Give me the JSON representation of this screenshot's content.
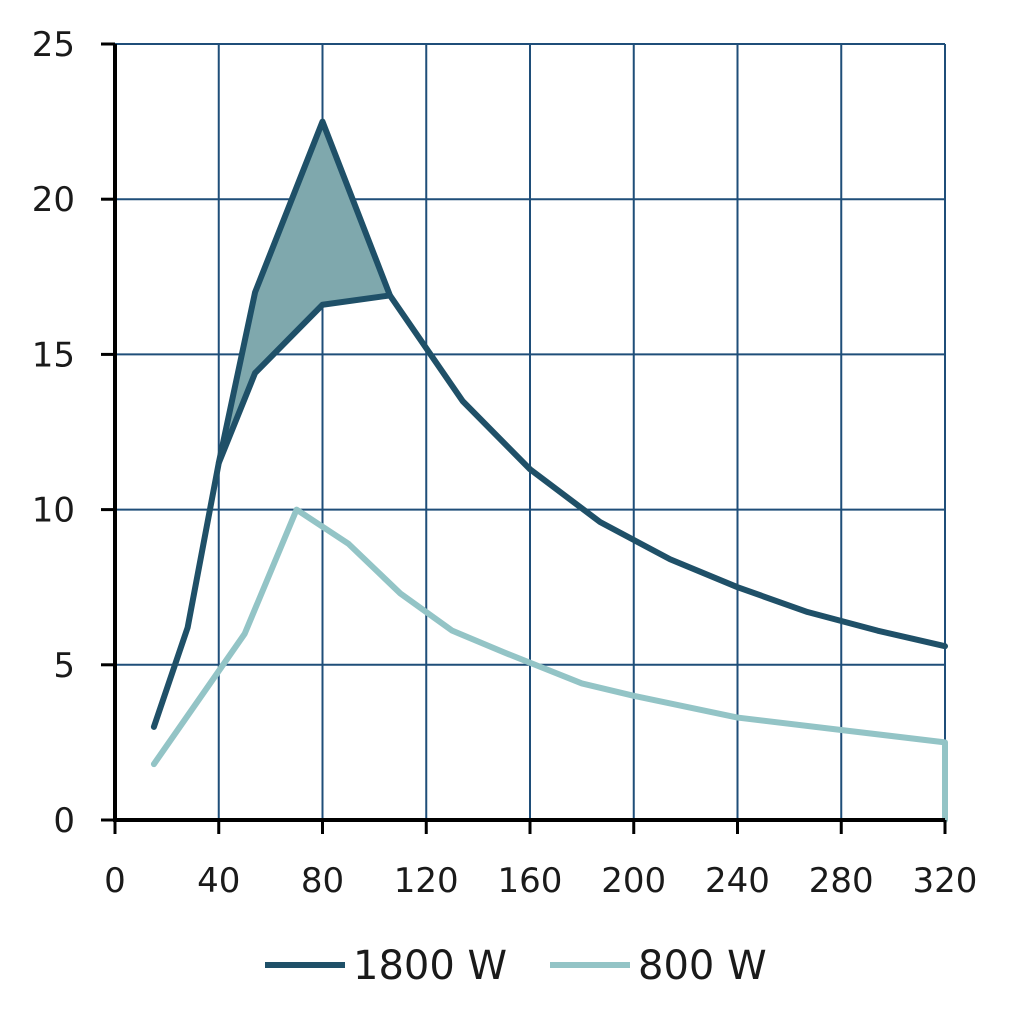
{
  "chart_data": {
    "type": "line",
    "title": "",
    "xlabel": "",
    "ylabel": "",
    "xlim": [
      0,
      320
    ],
    "ylim": [
      0,
      25
    ],
    "x_ticks": [
      "0",
      "40",
      "80",
      "120",
      "160",
      "200",
      "240",
      "280",
      "320"
    ],
    "y_ticks": [
      "0",
      "5",
      "10",
      "15",
      "20",
      "25"
    ],
    "grid": true,
    "legend_position": "bottom",
    "series": [
      {
        "name": "1800 W",
        "color": "#1f5068",
        "points": [
          [
            15,
            3.0
          ],
          [
            28,
            6.2
          ],
          [
            40,
            11.5
          ],
          [
            54,
            14.4
          ],
          [
            80,
            16.6
          ],
          [
            106,
            16.9
          ],
          [
            134,
            13.5
          ],
          [
            160,
            11.3
          ],
          [
            187,
            9.6
          ],
          [
            214,
            8.4
          ],
          [
            240,
            7.5
          ],
          [
            267,
            6.7
          ],
          [
            294,
            6.1
          ],
          [
            320,
            5.6
          ]
        ]
      },
      {
        "name": "800 W",
        "color": "#93c4c6",
        "points": [
          [
            15,
            1.8
          ],
          [
            50,
            6.0
          ],
          [
            70,
            10.0
          ],
          [
            90,
            8.9
          ],
          [
            110,
            7.3
          ],
          [
            130,
            6.1
          ],
          [
            150,
            5.4
          ],
          [
            180,
            4.4
          ],
          [
            200,
            4.0
          ],
          [
            240,
            3.3
          ],
          [
            280,
            2.9
          ],
          [
            320,
            2.5
          ],
          [
            320,
            0
          ]
        ]
      }
    ],
    "annotations": [
      {
        "type": "shaded_region",
        "color": "#7fa8ad",
        "description": "peak variant of 1800 W curve",
        "upper": [
          [
            40,
            11.5
          ],
          [
            54,
            17.0
          ],
          [
            80,
            22.5
          ],
          [
            106,
            16.9
          ]
        ],
        "lower": [
          [
            40,
            11.5
          ],
          [
            54,
            14.4
          ],
          [
            80,
            16.6
          ],
          [
            106,
            16.9
          ]
        ]
      }
    ]
  }
}
